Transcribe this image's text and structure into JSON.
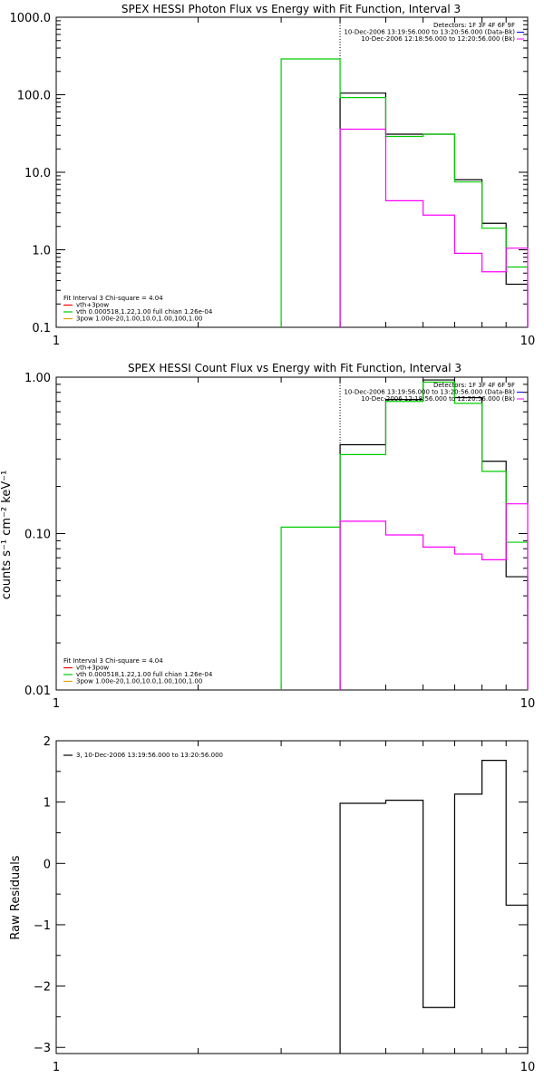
{
  "colors": {
    "black": "#000000",
    "green": "#00cc00",
    "magenta": "#ff00ff",
    "red": "#ff0000",
    "orange": "#e0a000",
    "blue": "#0000ff"
  },
  "chart_data": [
    {
      "type": "line",
      "title": "SPEX HESSI Photon Flux vs Energy with Fit Function, Interval 3",
      "xscale": "log",
      "yscale": "log",
      "xlim": [
        1,
        10
      ],
      "ylim": [
        0.1,
        1000
      ],
      "xticks": [
        {
          "v": 1,
          "label": "1"
        },
        {
          "v": 10,
          "label": "10"
        }
      ],
      "yticks": [
        {
          "v": 0.1,
          "label": "0.1"
        },
        {
          "v": 1,
          "label": "1.0"
        },
        {
          "v": 10,
          "label": "10.0"
        },
        {
          "v": 100,
          "label": "100.0"
        },
        {
          "v": 1000,
          "label": "1000.0"
        }
      ],
      "vline": 4,
      "info_lines": [
        "Detectors: 1F 3F 4F 6F 9F",
        "10-Dec-2006 13:19:56.000 to 13:20:56.000 (Data-Bk)",
        "10-Dec-2006 12:18:56.000 to 12:20:56.000 (Bk)"
      ],
      "legend": [
        {
          "label": "Fit Interval 3   Chi-square = 4.04",
          "color": "black"
        },
        {
          "label": "vth+3pow",
          "color": "red"
        },
        {
          "label": "vth 0.000518,1.22,1.00  full chian 1.26e-04",
          "color": "green"
        },
        {
          "label": "3pow 1.00e-20,1.00,10.0,1.00,100,1.00",
          "color": "orange"
        }
      ],
      "series": [
        {
          "color": "black",
          "edges": [
            4,
            5,
            6,
            7,
            8,
            9,
            10
          ],
          "values": [
            105,
            31,
            31,
            8,
            2.2,
            0.36
          ]
        },
        {
          "color": "green",
          "edges": [
            3,
            4,
            5,
            6,
            7,
            8,
            9,
            10
          ],
          "values": [
            290,
            92,
            29,
            31,
            7.5,
            1.9,
            0.6
          ]
        },
        {
          "color": "magenta",
          "edges": [
            4,
            5,
            6,
            7,
            8,
            9,
            10
          ],
          "values": [
            36,
            4.3,
            2.8,
            0.9,
            0.52,
            1.05
          ]
        }
      ]
    },
    {
      "type": "line",
      "title": "SPEX HESSI Count Flux vs Energy with Fit Function, Interval 3",
      "ylabel": "counts s⁻¹ cm⁻² keV⁻¹",
      "xscale": "log",
      "yscale": "log",
      "xlim": [
        1,
        10
      ],
      "ylim": [
        0.01,
        1
      ],
      "xticks": [
        {
          "v": 1,
          "label": "1"
        },
        {
          "v": 10,
          "label": "10"
        }
      ],
      "yticks": [
        {
          "v": 0.01,
          "label": "0.01"
        },
        {
          "v": 0.1,
          "label": "0.10"
        },
        {
          "v": 1,
          "label": "1.00"
        }
      ],
      "vline": 4,
      "info_lines": [
        "Detectors: 1F 3F 4F 6F 9F",
        "10-Dec-2006 13:19:56.000 to 13:20:56.000 (Data-Bk)",
        "10-Dec-2006 12:18:56.000 to 12:20:56.000 (Bk)"
      ],
      "legend": [
        {
          "label": "Fit Interval 3   Chi-square = 4.04",
          "color": "black"
        },
        {
          "label": "vth+3pow",
          "color": "red"
        },
        {
          "label": "vth 0.000518,1.22,1.00  full chian 1.26e-04",
          "color": "green"
        },
        {
          "label": "3pow 1.00e-20,1.00,10.0,1.00,100,1.00",
          "color": "orange"
        }
      ],
      "series": [
        {
          "color": "black",
          "edges": [
            4,
            5,
            6,
            7,
            8,
            9,
            10
          ],
          "values": [
            0.37,
            0.72,
            0.96,
            0.74,
            0.29,
            0.053
          ]
        },
        {
          "color": "green",
          "edges": [
            3,
            4,
            5,
            6,
            7,
            8,
            9,
            10
          ],
          "values": [
            0.11,
            0.32,
            0.7,
            0.93,
            0.68,
            0.25,
            0.088
          ]
        },
        {
          "color": "magenta",
          "edges": [
            4,
            5,
            6,
            7,
            8,
            9,
            10
          ],
          "values": [
            0.12,
            0.098,
            0.082,
            0.074,
            0.068,
            0.155
          ]
        }
      ]
    },
    {
      "type": "line",
      "ylabel": "Raw Residuals",
      "xscale": "log",
      "yscale": "linear",
      "xlim": [
        1,
        10
      ],
      "ylim": [
        -3.1,
        2
      ],
      "xticks": [
        {
          "v": 1,
          "label": "1"
        },
        {
          "v": 10,
          "label": "10"
        }
      ],
      "yticks": [
        {
          "v": -3,
          "label": "−3"
        },
        {
          "v": -2,
          "label": "−2"
        },
        {
          "v": -1,
          "label": "−1"
        },
        {
          "v": 0,
          "label": "0"
        },
        {
          "v": 1,
          "label": "1"
        },
        {
          "v": 2,
          "label": "2"
        }
      ],
      "legend": [
        {
          "label": "3, 10-Dec-2006 13:19:56.000 to 13:20:56.000",
          "color": "black"
        }
      ],
      "series": [
        {
          "color": "black",
          "edges": [
            4,
            5,
            6,
            7,
            8,
            9,
            10
          ],
          "values": [
            0.98,
            1.03,
            -2.35,
            1.13,
            1.68,
            -0.68
          ]
        }
      ]
    }
  ]
}
